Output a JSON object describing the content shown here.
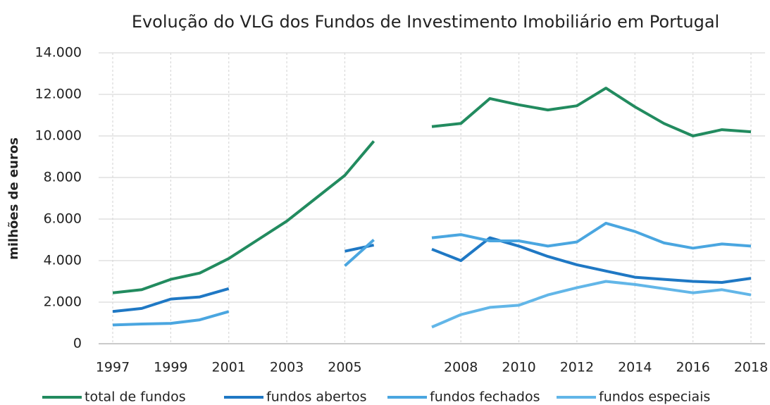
{
  "chart_data": {
    "type": "line",
    "title": "Evolução do VLG dos Fundos de Investimento Imobiliário em Portugal",
    "y_label": "milhões de euros",
    "categories": [
      "1997",
      null,
      "1999",
      null,
      "2001",
      null,
      "2003",
      null,
      "2005",
      null,
      null,
      null,
      "2008",
      null,
      "2010",
      null,
      "2012",
      null,
      "2014",
      null,
      "2016",
      null,
      "2018"
    ],
    "series": [
      {
        "name": "total de fundos",
        "color": "#228b5f",
        "values": [
          2450,
          2600,
          3100,
          3400,
          4100,
          5000,
          5900,
          7000,
          8100,
          9750,
          null,
          10450,
          10600,
          11800,
          11500,
          11250,
          11450,
          12300,
          11400,
          10600,
          10000,
          10300,
          10200
        ]
      },
      {
        "name": "fundos abertos",
        "color": "#1f78c4",
        "values": [
          1550,
          1700,
          2150,
          2250,
          2650,
          null,
          null,
          null,
          4450,
          4750,
          null,
          4550,
          4000,
          5100,
          4700,
          4200,
          3800,
          3500,
          3200,
          3100,
          3000,
          2950,
          3150
        ]
      },
      {
        "name": "fundos fechados",
        "color": "#4aa6e0",
        "values": [
          900,
          950,
          980,
          1150,
          1550,
          null,
          null,
          null,
          3750,
          5000,
          null,
          5100,
          5250,
          4950,
          4950,
          4700,
          4900,
          5800,
          5400,
          4850,
          4600,
          4800,
          4700
        ]
      },
      {
        "name": "fundos especiais",
        "color": "#62b6e8",
        "values": [
          null,
          null,
          null,
          null,
          null,
          null,
          null,
          null,
          null,
          null,
          null,
          800,
          1400,
          1750,
          1850,
          2350,
          2700,
          3000,
          2850,
          2650,
          2450,
          2600,
          2350
        ]
      }
    ],
    "ylim": [
      0,
      14000
    ],
    "yticks": [
      0,
      {
        "value": 2000,
        "label": "2.000"
      },
      {
        "value": 4000,
        "label": "4.000"
      },
      {
        "value": 6000,
        "label": "6.000"
      },
      {
        "value": 8000,
        "label": "8.000"
      },
      {
        "value": 10000,
        "label": "10.000"
      },
      {
        "value": 12000,
        "label": "12.000"
      },
      {
        "value": 14000,
        "label": "14.000"
      }
    ],
    "grid": true,
    "legend": "bottom"
  }
}
